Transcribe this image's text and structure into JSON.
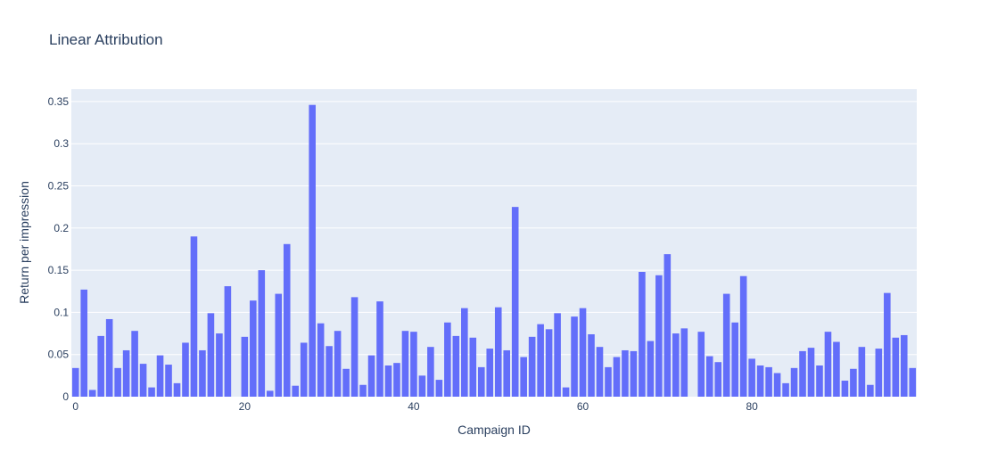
{
  "chart_data": {
    "type": "bar",
    "title": "Linear Attribution",
    "xlabel": "Campaign ID",
    "ylabel": "Return per impression",
    "xlim": [
      -0.5,
      99.5
    ],
    "ylim": [
      0,
      0.3647
    ],
    "x_ticks": [
      0,
      20,
      40,
      60,
      80
    ],
    "y_ticks": [
      0,
      0.05,
      0.1,
      0.15,
      0.2,
      0.25,
      0.3,
      0.35
    ],
    "y_tick_labels": [
      "0",
      "0.05",
      "0.1",
      "0.15",
      "0.2",
      "0.25",
      "0.3",
      "0.35"
    ],
    "grid": true,
    "bar_color": "#636efa",
    "plot_background": "#e5ecf6",
    "x": [
      0,
      1,
      2,
      3,
      4,
      5,
      6,
      7,
      8,
      9,
      10,
      11,
      12,
      13,
      14,
      15,
      16,
      17,
      18,
      19,
      20,
      21,
      22,
      23,
      24,
      25,
      26,
      27,
      28,
      29,
      30,
      31,
      32,
      33,
      34,
      35,
      36,
      37,
      38,
      39,
      40,
      41,
      42,
      43,
      44,
      45,
      46,
      47,
      48,
      49,
      50,
      51,
      52,
      53,
      54,
      55,
      56,
      57,
      58,
      59,
      60,
      61,
      62,
      63,
      64,
      65,
      66,
      67,
      68,
      69,
      70,
      71,
      72,
      73,
      74,
      75,
      76,
      77,
      78,
      79,
      80,
      81,
      82,
      83,
      84,
      85,
      86,
      87,
      88,
      89,
      90,
      91,
      92,
      93,
      94,
      95,
      96,
      97,
      98,
      99
    ],
    "values": [
      0.034,
      0.127,
      0.008,
      0.072,
      0.092,
      0.034,
      0.055,
      0.078,
      0.039,
      0.011,
      0.049,
      0.038,
      0.016,
      0.064,
      0.19,
      0.055,
      0.099,
      0.075,
      0.131,
      0,
      0.071,
      0.114,
      0.15,
      0.007,
      0.122,
      0.181,
      0.013,
      0.064,
      0.346,
      0.087,
      0.06,
      0.078,
      0.033,
      0.118,
      0.014,
      0.049,
      0.113,
      0.037,
      0.04,
      0.078,
      0.077,
      0.025,
      0.059,
      0.02,
      0.088,
      0.072,
      0.105,
      0.07,
      0.035,
      0.057,
      0.106,
      0.055,
      0.225,
      0.047,
      0.071,
      0.086,
      0.08,
      0.099,
      0.011,
      0.095,
      0.105,
      0.074,
      0.059,
      0.035,
      0.047,
      0.055,
      0.054,
      0.148,
      0.066,
      0.144,
      0.169,
      0.075,
      0.081,
      0,
      0.077,
      0.048,
      0.041,
      0.122,
      0.088,
      0.143,
      0.045,
      0.037,
      0.035,
      0.028,
      0.016,
      0.034,
      0.054,
      0.058,
      0.037,
      0.077,
      0.065,
      0.019,
      0.033,
      0.059,
      0.014,
      0.057,
      0.123,
      0.07,
      0.073,
      0.034
    ]
  }
}
